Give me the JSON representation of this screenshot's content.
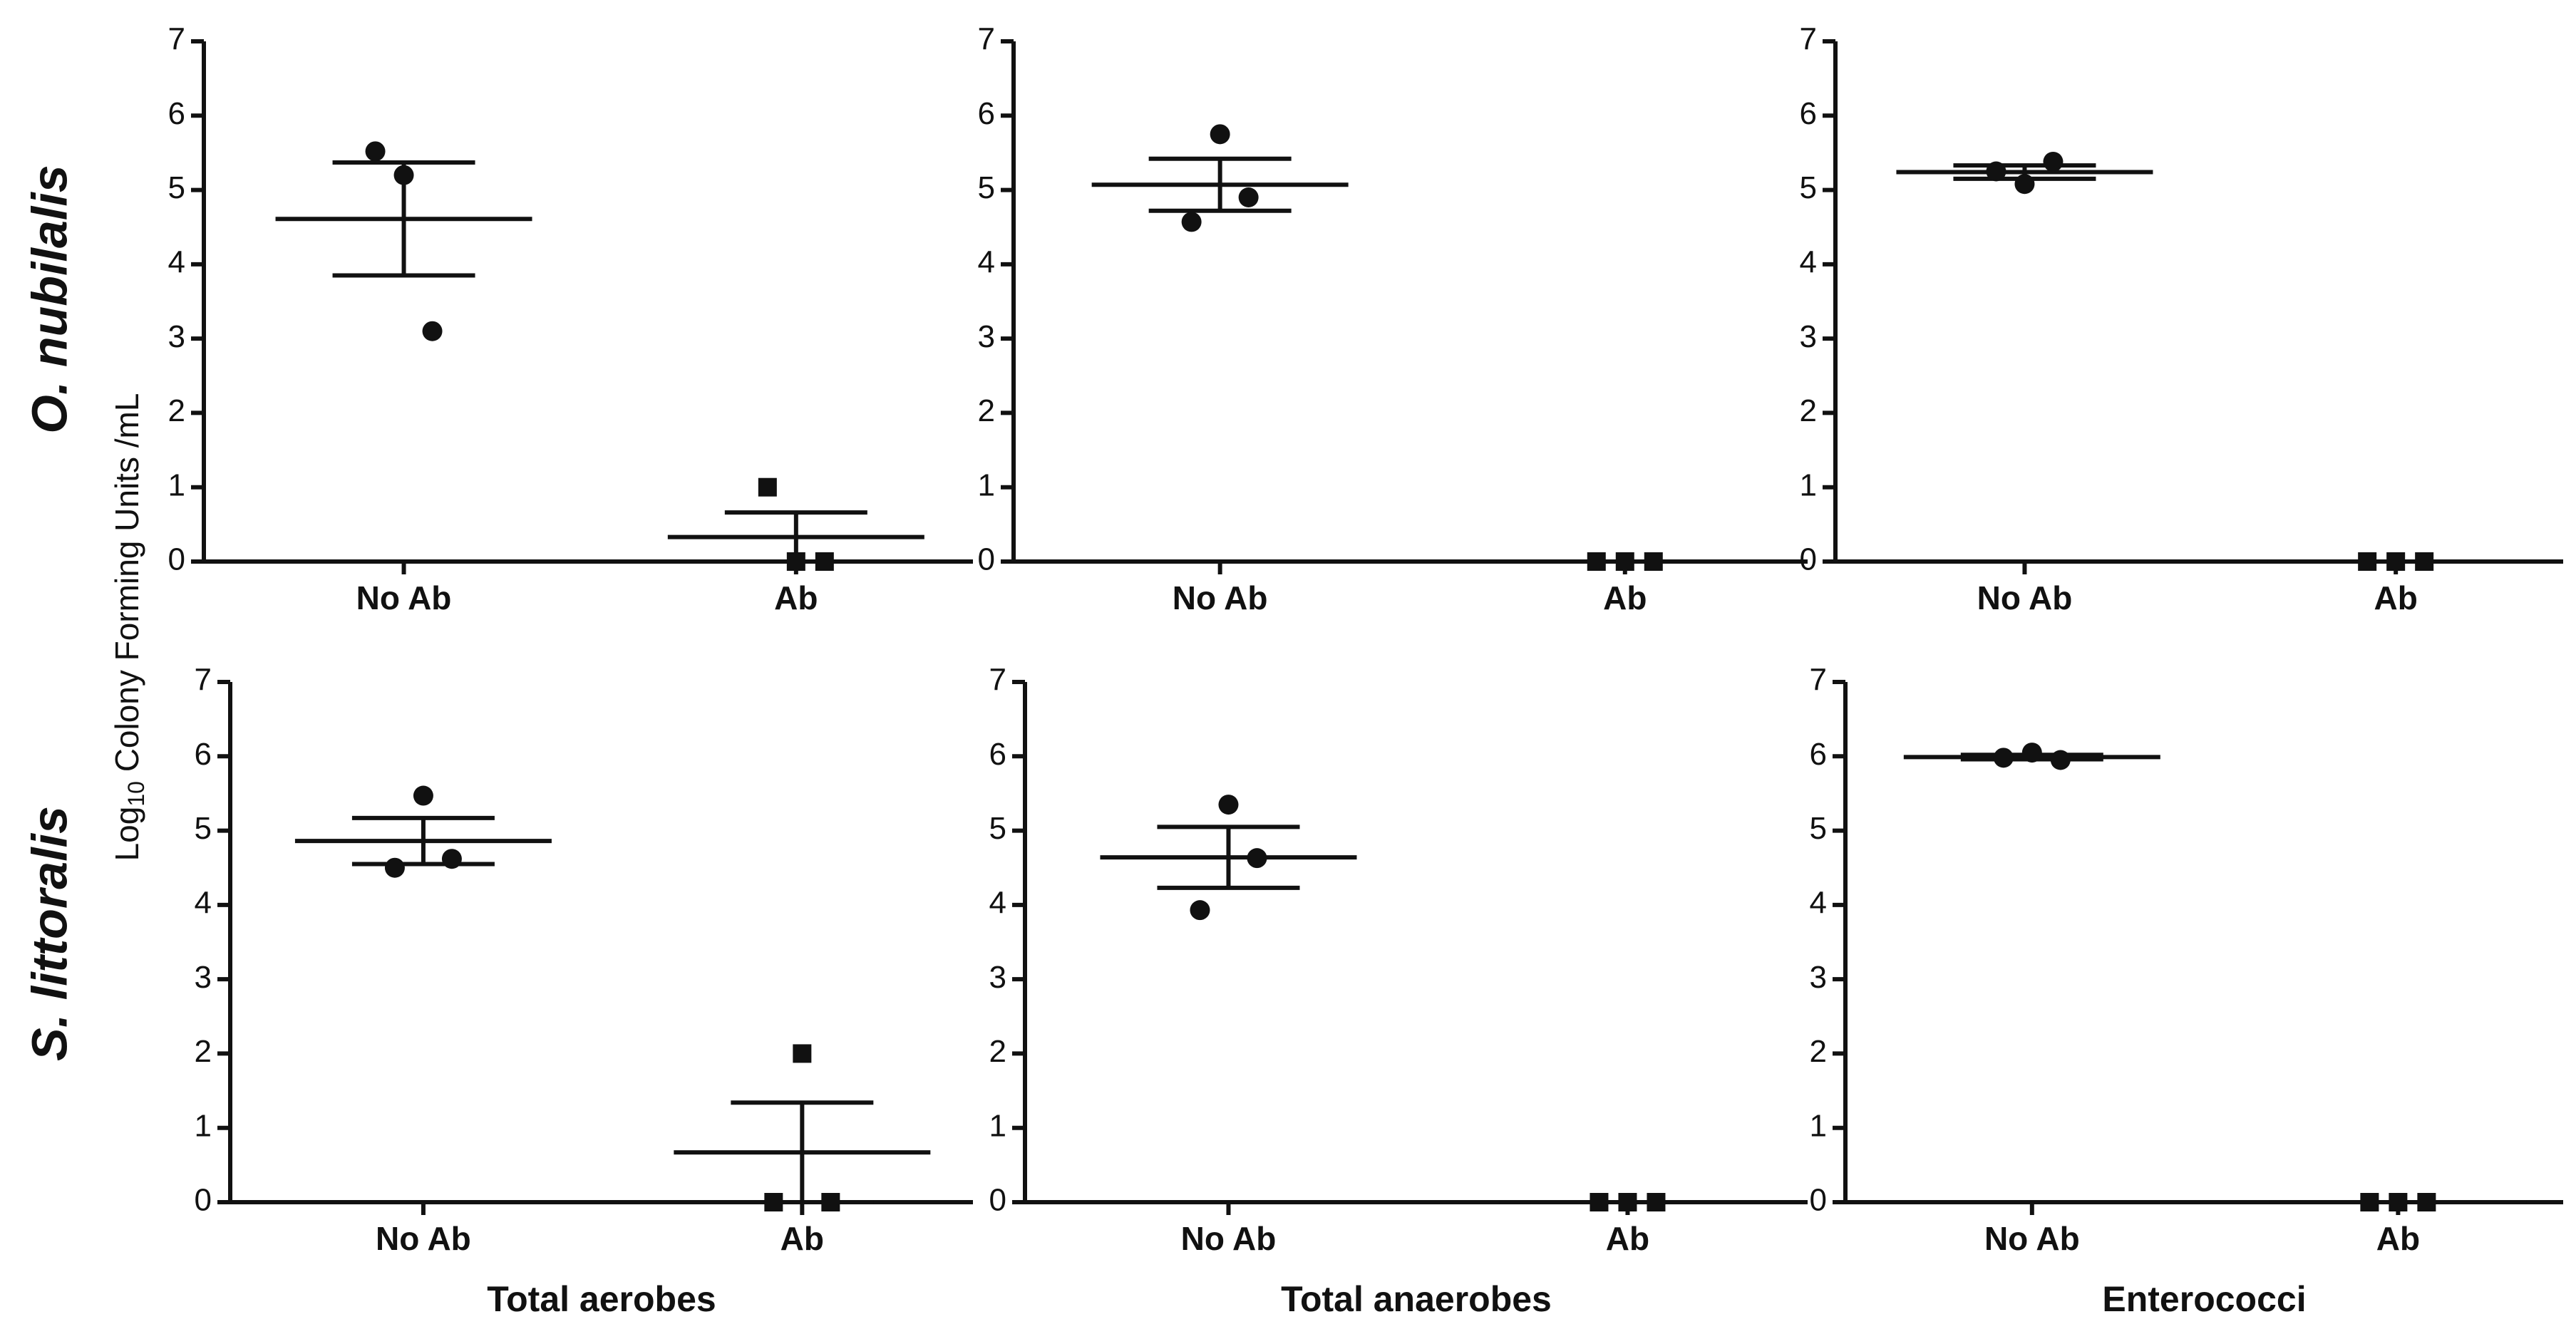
{
  "figure": {
    "ylabel": [
      "Log",
      "10",
      " Colony Forming Units /mL"
    ],
    "row_labels": [
      "O. nubilalis",
      "S. littoralis"
    ]
  },
  "chart_data": [
    {
      "type": "dotplot",
      "ylim": [
        0,
        7
      ],
      "yticks": [
        0,
        1,
        2,
        3,
        4,
        5,
        6,
        7
      ],
      "color": "#111111",
      "groups": [
        {
          "category": "No Ab",
          "marker": "circle",
          "points": [
            5.52,
            5.2,
            3.1
          ],
          "mean": 4.61,
          "sem": 0.76
        },
        {
          "category": "Ab",
          "marker": "square",
          "points": [
            1.0,
            0,
            0
          ],
          "mean": 0.33,
          "sem": 0.33
        }
      ]
    },
    {
      "type": "dotplot",
      "ylim": [
        0,
        7
      ],
      "yticks": [
        0,
        1,
        2,
        3,
        4,
        5,
        6,
        7
      ],
      "color": "#111111",
      "groups": [
        {
          "category": "No Ab",
          "marker": "circle",
          "points": [
            4.57,
            5.75,
            4.9
          ],
          "mean": 5.07,
          "sem": 0.35
        },
        {
          "category": "Ab",
          "marker": "square",
          "points": [
            0,
            0,
            0
          ],
          "mean": 0,
          "sem": 0
        }
      ]
    },
    {
      "type": "dotplot",
      "ylim": [
        0,
        7
      ],
      "yticks": [
        0,
        1,
        2,
        3,
        4,
        5,
        6,
        7
      ],
      "color": "#111111",
      "groups": [
        {
          "category": "No Ab",
          "marker": "circle",
          "points": [
            5.25,
            5.08,
            5.38
          ],
          "mean": 5.24,
          "sem": 0.09
        },
        {
          "category": "Ab",
          "marker": "square",
          "points": [
            0,
            0,
            0
          ],
          "mean": 0,
          "sem": 0
        }
      ]
    },
    {
      "type": "dotplot",
      "ylim": [
        0,
        7
      ],
      "yticks": [
        0,
        1,
        2,
        3,
        4,
        5,
        6,
        7
      ],
      "color": "#111111",
      "xlabel": "Total aerobes",
      "groups": [
        {
          "category": "No Ab",
          "marker": "circle",
          "points": [
            4.5,
            5.47,
            4.62
          ],
          "mean": 4.86,
          "sem": 0.31
        },
        {
          "category": "Ab",
          "marker": "square",
          "points": [
            0,
            2.0,
            0
          ],
          "mean": 0.67,
          "sem": 0.67
        }
      ]
    },
    {
      "type": "dotplot",
      "ylim": [
        0,
        7
      ],
      "yticks": [
        0,
        1,
        2,
        3,
        4,
        5,
        6,
        7
      ],
      "color": "#111111",
      "xlabel": "Total anaerobes",
      "groups": [
        {
          "category": "No Ab",
          "marker": "circle",
          "points": [
            3.93,
            5.35,
            4.63
          ],
          "mean": 4.64,
          "sem": 0.41
        },
        {
          "category": "Ab",
          "marker": "square",
          "points": [
            0,
            0,
            0
          ],
          "mean": 0,
          "sem": 0
        }
      ]
    },
    {
      "type": "dotplot",
      "ylim": [
        0,
        7
      ],
      "yticks": [
        0,
        1,
        2,
        3,
        4,
        5,
        6,
        7
      ],
      "color": "#111111",
      "xlabel": "Enterococci",
      "groups": [
        {
          "category": "No Ab",
          "marker": "circle",
          "points": [
            5.98,
            6.05,
            5.95
          ],
          "mean": 5.99,
          "sem": 0.03
        },
        {
          "category": "Ab",
          "marker": "square",
          "points": [
            0,
            0,
            0
          ],
          "mean": 0,
          "sem": 0
        }
      ]
    }
  ]
}
